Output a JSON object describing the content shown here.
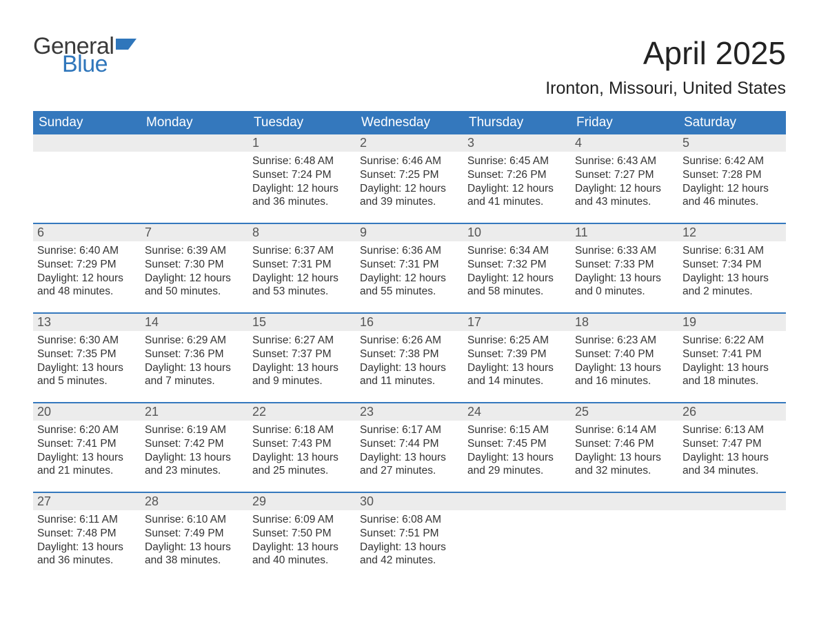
{
  "logo": {
    "line1": "General",
    "line2": "Blue",
    "flag_color": "#2f76bb",
    "text_color_gray": "#3a3a3a"
  },
  "title": "April 2025",
  "location": "Ironton, Missouri, United States",
  "colors": {
    "header_bg": "#3478bd",
    "header_text": "#ffffff",
    "date_bg": "#ececec",
    "date_text": "#555555",
    "body_text": "#333333",
    "row_border": "#3478bd",
    "page_bg": "#ffffff"
  },
  "font": {
    "family": "Arial",
    "title_size": 46,
    "location_size": 25,
    "dayheader_size": 19,
    "date_size": 18,
    "body_size": 15.5
  },
  "day_names": [
    "Sunday",
    "Monday",
    "Tuesday",
    "Wednesday",
    "Thursday",
    "Friday",
    "Saturday"
  ],
  "weeks": [
    [
      null,
      null,
      {
        "d": "1",
        "sr": "Sunrise: 6:48 AM",
        "ss": "Sunset: 7:24 PM",
        "dl": "Daylight: 12 hours and 36 minutes."
      },
      {
        "d": "2",
        "sr": "Sunrise: 6:46 AM",
        "ss": "Sunset: 7:25 PM",
        "dl": "Daylight: 12 hours and 39 minutes."
      },
      {
        "d": "3",
        "sr": "Sunrise: 6:45 AM",
        "ss": "Sunset: 7:26 PM",
        "dl": "Daylight: 12 hours and 41 minutes."
      },
      {
        "d": "4",
        "sr": "Sunrise: 6:43 AM",
        "ss": "Sunset: 7:27 PM",
        "dl": "Daylight: 12 hours and 43 minutes."
      },
      {
        "d": "5",
        "sr": "Sunrise: 6:42 AM",
        "ss": "Sunset: 7:28 PM",
        "dl": "Daylight: 12 hours and 46 minutes."
      }
    ],
    [
      {
        "d": "6",
        "sr": "Sunrise: 6:40 AM",
        "ss": "Sunset: 7:29 PM",
        "dl": "Daylight: 12 hours and 48 minutes."
      },
      {
        "d": "7",
        "sr": "Sunrise: 6:39 AM",
        "ss": "Sunset: 7:30 PM",
        "dl": "Daylight: 12 hours and 50 minutes."
      },
      {
        "d": "8",
        "sr": "Sunrise: 6:37 AM",
        "ss": "Sunset: 7:31 PM",
        "dl": "Daylight: 12 hours and 53 minutes."
      },
      {
        "d": "9",
        "sr": "Sunrise: 6:36 AM",
        "ss": "Sunset: 7:31 PM",
        "dl": "Daylight: 12 hours and 55 minutes."
      },
      {
        "d": "10",
        "sr": "Sunrise: 6:34 AM",
        "ss": "Sunset: 7:32 PM",
        "dl": "Daylight: 12 hours and 58 minutes."
      },
      {
        "d": "11",
        "sr": "Sunrise: 6:33 AM",
        "ss": "Sunset: 7:33 PM",
        "dl": "Daylight: 13 hours and 0 minutes."
      },
      {
        "d": "12",
        "sr": "Sunrise: 6:31 AM",
        "ss": "Sunset: 7:34 PM",
        "dl": "Daylight: 13 hours and 2 minutes."
      }
    ],
    [
      {
        "d": "13",
        "sr": "Sunrise: 6:30 AM",
        "ss": "Sunset: 7:35 PM",
        "dl": "Daylight: 13 hours and 5 minutes."
      },
      {
        "d": "14",
        "sr": "Sunrise: 6:29 AM",
        "ss": "Sunset: 7:36 PM",
        "dl": "Daylight: 13 hours and 7 minutes."
      },
      {
        "d": "15",
        "sr": "Sunrise: 6:27 AM",
        "ss": "Sunset: 7:37 PM",
        "dl": "Daylight: 13 hours and 9 minutes."
      },
      {
        "d": "16",
        "sr": "Sunrise: 6:26 AM",
        "ss": "Sunset: 7:38 PM",
        "dl": "Daylight: 13 hours and 11 minutes."
      },
      {
        "d": "17",
        "sr": "Sunrise: 6:25 AM",
        "ss": "Sunset: 7:39 PM",
        "dl": "Daylight: 13 hours and 14 minutes."
      },
      {
        "d": "18",
        "sr": "Sunrise: 6:23 AM",
        "ss": "Sunset: 7:40 PM",
        "dl": "Daylight: 13 hours and 16 minutes."
      },
      {
        "d": "19",
        "sr": "Sunrise: 6:22 AM",
        "ss": "Sunset: 7:41 PM",
        "dl": "Daylight: 13 hours and 18 minutes."
      }
    ],
    [
      {
        "d": "20",
        "sr": "Sunrise: 6:20 AM",
        "ss": "Sunset: 7:41 PM",
        "dl": "Daylight: 13 hours and 21 minutes."
      },
      {
        "d": "21",
        "sr": "Sunrise: 6:19 AM",
        "ss": "Sunset: 7:42 PM",
        "dl": "Daylight: 13 hours and 23 minutes."
      },
      {
        "d": "22",
        "sr": "Sunrise: 6:18 AM",
        "ss": "Sunset: 7:43 PM",
        "dl": "Daylight: 13 hours and 25 minutes."
      },
      {
        "d": "23",
        "sr": "Sunrise: 6:17 AM",
        "ss": "Sunset: 7:44 PM",
        "dl": "Daylight: 13 hours and 27 minutes."
      },
      {
        "d": "24",
        "sr": "Sunrise: 6:15 AM",
        "ss": "Sunset: 7:45 PM",
        "dl": "Daylight: 13 hours and 29 minutes."
      },
      {
        "d": "25",
        "sr": "Sunrise: 6:14 AM",
        "ss": "Sunset: 7:46 PM",
        "dl": "Daylight: 13 hours and 32 minutes."
      },
      {
        "d": "26",
        "sr": "Sunrise: 6:13 AM",
        "ss": "Sunset: 7:47 PM",
        "dl": "Daylight: 13 hours and 34 minutes."
      }
    ],
    [
      {
        "d": "27",
        "sr": "Sunrise: 6:11 AM",
        "ss": "Sunset: 7:48 PM",
        "dl": "Daylight: 13 hours and 36 minutes."
      },
      {
        "d": "28",
        "sr": "Sunrise: 6:10 AM",
        "ss": "Sunset: 7:49 PM",
        "dl": "Daylight: 13 hours and 38 minutes."
      },
      {
        "d": "29",
        "sr": "Sunrise: 6:09 AM",
        "ss": "Sunset: 7:50 PM",
        "dl": "Daylight: 13 hours and 40 minutes."
      },
      {
        "d": "30",
        "sr": "Sunrise: 6:08 AM",
        "ss": "Sunset: 7:51 PM",
        "dl": "Daylight: 13 hours and 42 minutes."
      },
      null,
      null,
      null
    ]
  ]
}
